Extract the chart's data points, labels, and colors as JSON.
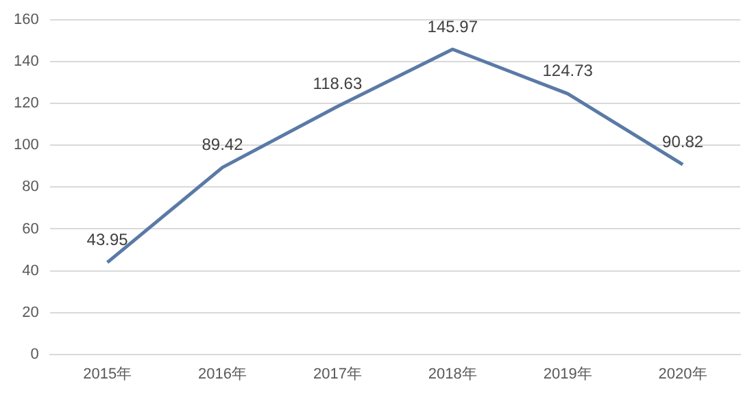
{
  "chart_data": {
    "type": "line",
    "categories": [
      "2015年",
      "2016年",
      "2017年",
      "2018年",
      "2019年",
      "2020年"
    ],
    "series": [
      {
        "color": "#5a7aa6",
        "values": [
          43.95,
          89.42,
          118.63,
          145.97,
          124.73,
          90.82
        ]
      }
    ],
    "ylim": [
      0,
      160
    ],
    "yticks": [
      0,
      20,
      40,
      60,
      80,
      100,
      120,
      140,
      160
    ],
    "grid": "y",
    "legend": false,
    "marker": "none",
    "line_style": "solid",
    "data_labels": true
  }
}
